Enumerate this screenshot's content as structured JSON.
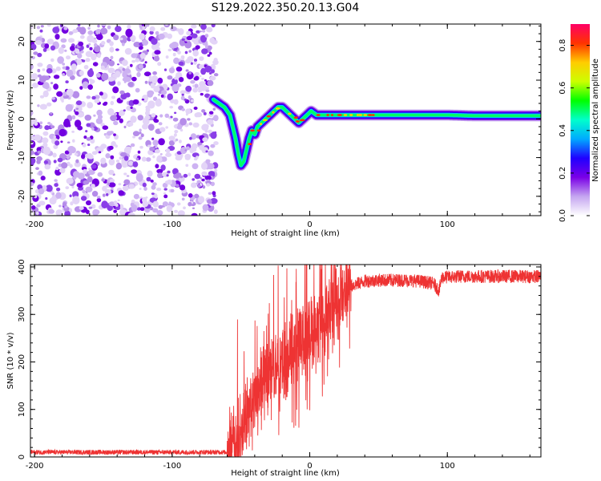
{
  "title": "S129.2022.350.20.13.G04",
  "chart_data": [
    {
      "type": "heatmap",
      "xlabel": "Height of straight line (km)",
      "ylabel": "Frequency (Hz)",
      "xlim": [
        -203,
        168
      ],
      "ylim": [
        -25,
        24.5
      ],
      "xticks": [
        -200,
        -100,
        0,
        100
      ],
      "yticks": [
        -20,
        -10,
        0,
        10,
        20
      ],
      "noise_region_x": [
        -203,
        -68
      ],
      "ridge": {
        "x": [
          -70,
          -66,
          -62,
          -58,
          -56,
          -54,
          -52,
          -50,
          -48,
          -46,
          -44,
          -42,
          -40,
          -38,
          -35,
          -32,
          -29,
          -26,
          -23,
          -20,
          -17,
          -14,
          -11,
          -8,
          -5,
          -2,
          1,
          5,
          10,
          20,
          40,
          60,
          80,
          100,
          120,
          140,
          168
        ],
        "y": [
          5,
          4,
          3,
          1,
          -2,
          -5,
          -9,
          -12,
          -11,
          -8,
          -5,
          -3,
          -4,
          -2,
          -1,
          0,
          1,
          2,
          3,
          3,
          2,
          1,
          0,
          -1,
          0,
          1,
          2,
          1,
          1,
          1,
          1,
          1,
          1,
          1,
          0.8,
          0.8,
          0.8
        ]
      },
      "colorbar": {
        "label": "Normalized spectral amplitude",
        "range": [
          0,
          0.9
        ],
        "ticks": [
          0.0,
          0.2,
          0.4,
          0.6,
          0.8
        ],
        "colors": [
          "#ffffff",
          "#c5a6f0",
          "#7a00e6",
          "#2000ff",
          "#00aaff",
          "#00ffcc",
          "#00ff00",
          "#ccff00",
          "#ffcc00",
          "#ff3300",
          "#ff0066"
        ]
      }
    },
    {
      "type": "line",
      "xlabel": "Height of straight line (km)",
      "ylabel": "SNR (10 * v/v)",
      "xlim": [
        -203,
        168
      ],
      "ylim": [
        0,
        405
      ],
      "xticks": [
        -200,
        -100,
        0,
        100
      ],
      "yticks": [
        0,
        100,
        200,
        300,
        400
      ],
      "color": "#ee3333",
      "trend": {
        "x": [
          -203,
          -60,
          -55,
          -50,
          -45,
          -40,
          -35,
          -30,
          -25,
          -20,
          -15,
          -10,
          -5,
          0,
          5,
          10,
          15,
          20,
          25,
          30,
          40,
          50,
          60,
          70,
          80,
          90,
          94,
          96,
          110,
          130,
          150,
          168
        ],
        "y": [
          10,
          10,
          30,
          60,
          90,
          130,
          150,
          170,
          180,
          200,
          215,
          235,
          245,
          260,
          275,
          300,
          320,
          335,
          350,
          360,
          370,
          372,
          372,
          372,
          370,
          365,
          350,
          378,
          380,
          380,
          380,
          380
        ]
      }
    }
  ]
}
